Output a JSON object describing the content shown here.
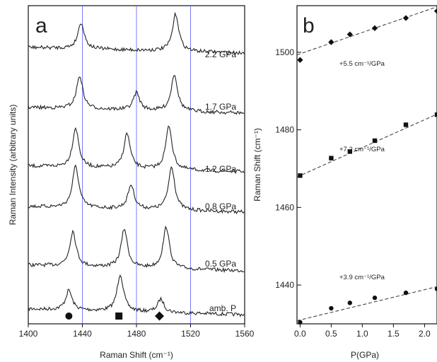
{
  "chart_data": [
    {
      "panel": "a",
      "type": "line",
      "xlabel": "Raman Shift (cm⁻¹)",
      "ylabel": "Raman Intensity (arbitrary units)",
      "xlim": [
        1400,
        1560
      ],
      "xticks": [
        "1400",
        "1440",
        "1480",
        "1520",
        "1560"
      ],
      "reference_lines_x": [
        1440,
        1480,
        1520
      ],
      "guide_color": "#5a5aff",
      "series": [
        {
          "name": "amb. P",
          "peaks": [
            {
              "x": 1430,
              "h": 0.45
            },
            {
              "x": 1468,
              "h": 0.85
            },
            {
              "x": 1498,
              "h": 0.3
            }
          ]
        },
        {
          "name": "0.5 GPa",
          "peaks": [
            {
              "x": 1433,
              "h": 0.8
            },
            {
              "x": 1471,
              "h": 0.88
            },
            {
              "x": 1502,
              "h": 0.95
            }
          ]
        },
        {
          "name": "0.8 GPa",
          "peaks": [
            {
              "x": 1435,
              "h": 0.95
            },
            {
              "x": 1476,
              "h": 0.55
            },
            {
              "x": 1506,
              "h": 1.0
            }
          ]
        },
        {
          "name": "1.2 GPa",
          "peaks": [
            {
              "x": 1435,
              "h": 0.9
            },
            {
              "x": 1473,
              "h": 0.8
            },
            {
              "x": 1504,
              "h": 1.0
            }
          ]
        },
        {
          "name": "1.7 GPa",
          "peaks": [
            {
              "x": 1438,
              "h": 0.75
            },
            {
              "x": 1480,
              "h": 0.4
            },
            {
              "x": 1508,
              "h": 0.85
            }
          ]
        },
        {
          "name": "2.2 GPa",
          "peaks": [
            {
              "x": 1439,
              "h": 0.6
            },
            {
              "x": 1509,
              "h": 0.85
            }
          ]
        }
      ],
      "markers": [
        {
          "shape": "circle",
          "x": 1430
        },
        {
          "shape": "square",
          "x": 1467
        },
        {
          "shape": "diamond",
          "x": 1497
        }
      ]
    },
    {
      "panel": "b",
      "type": "scatter",
      "xlabel": "P(GPa)",
      "ylabel": "Raman Shift (cm⁻¹)",
      "xlim": [
        -0.05,
        2.2
      ],
      "ylim": [
        1430,
        1512
      ],
      "xticks": [
        "0.0",
        "0.5",
        "1.0",
        "1.5",
        "2.0"
      ],
      "yticks": [
        "1440",
        "1460",
        "1480",
        "1500"
      ],
      "series": [
        {
          "marker": "diamond",
          "slope_label": "+5.5 cm⁻¹/GPa",
          "x": [
            0.0,
            0.5,
            0.8,
            1.2,
            1.7,
            2.2
          ],
          "y": [
            1498.0,
            1502.6,
            1504.6,
            1506.2,
            1508.8,
            1510.6
          ],
          "fit": {
            "intercept": 1499.6,
            "slope": 5.5
          }
        },
        {
          "marker": "square",
          "slope_label": "+7.2 cm⁻¹/GPa",
          "x": [
            0.0,
            0.5,
            0.8,
            1.2,
            1.7,
            2.2
          ],
          "y": [
            1468.2,
            1472.7,
            1474.4,
            1477.2,
            1481.3,
            1483.9
          ],
          "fit": {
            "intercept": 1468.2,
            "slope": 7.2
          }
        },
        {
          "marker": "circle",
          "slope_label": "+3.9 cm⁻¹/GPa",
          "x": [
            0.0,
            0.5,
            0.8,
            1.2,
            1.7,
            2.2
          ],
          "y": [
            1430.4,
            1434.0,
            1435.4,
            1436.7,
            1438.0,
            1439.0
          ],
          "fit": {
            "intercept": 1431.0,
            "slope": 3.9
          }
        }
      ]
    }
  ]
}
